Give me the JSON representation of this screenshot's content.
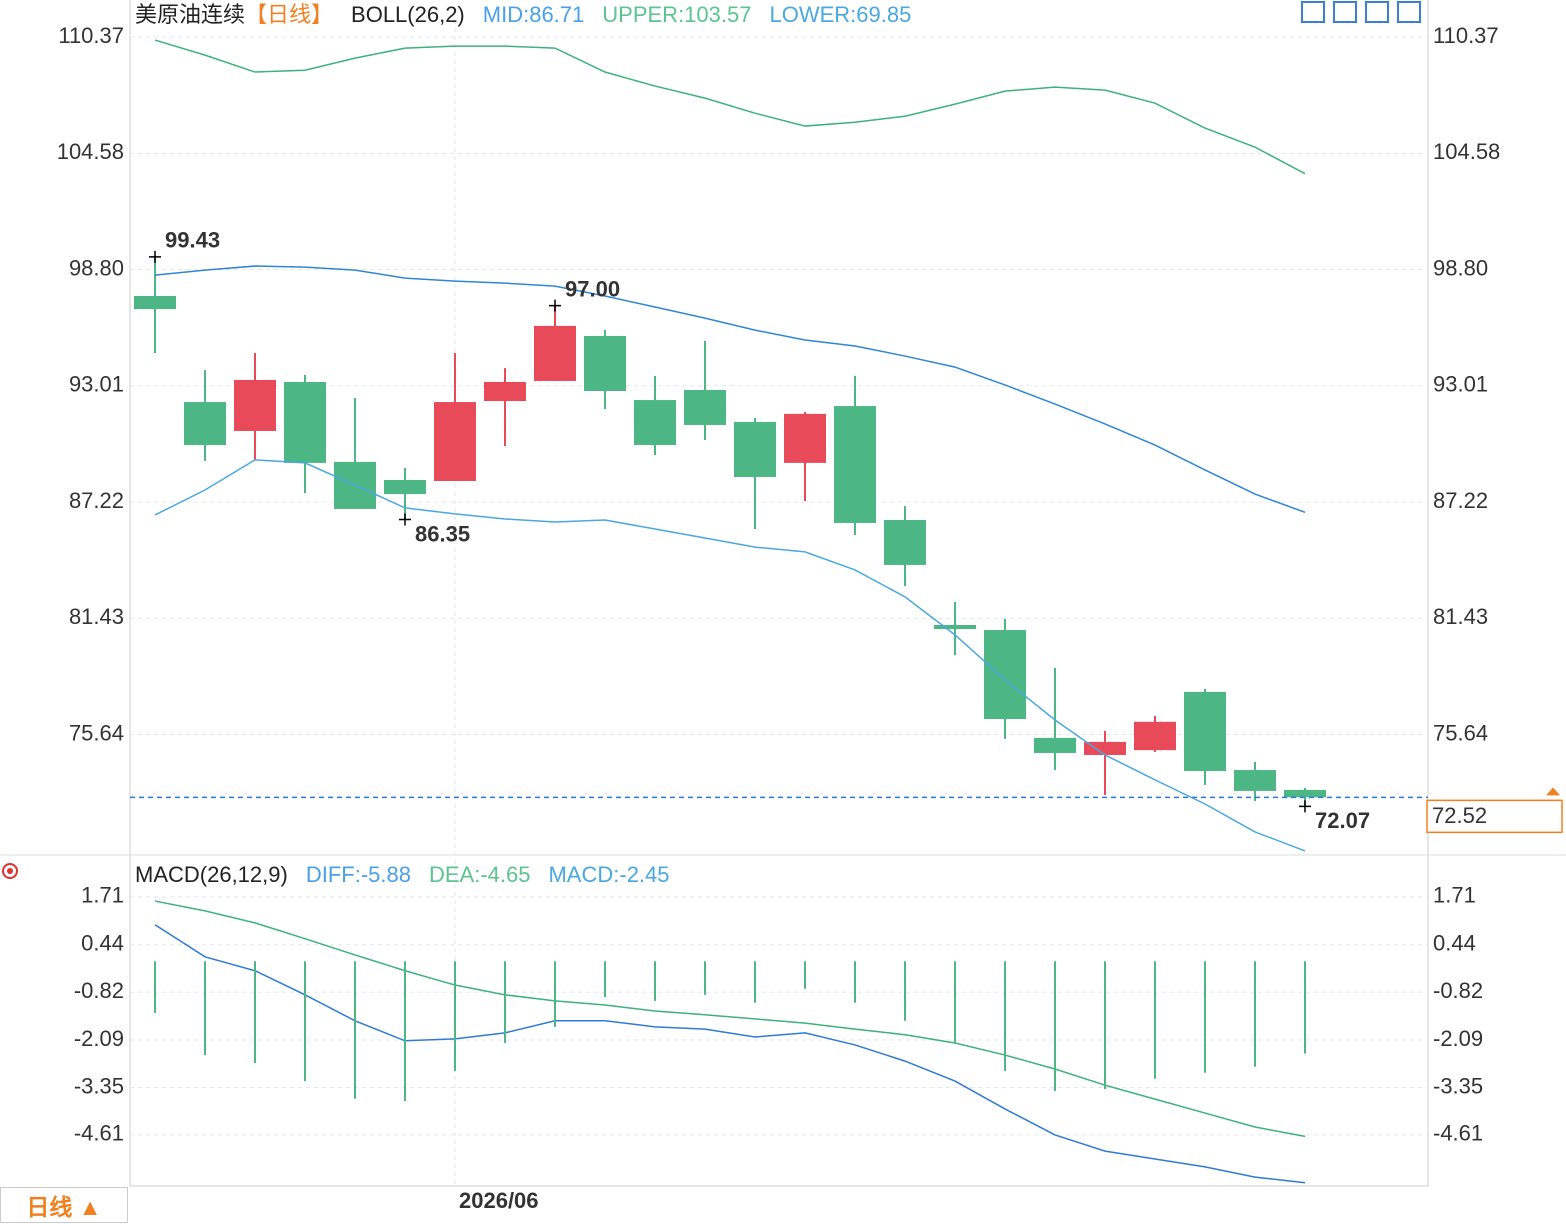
{
  "controls": {
    "period_button": "日线 ▲"
  },
  "chart_data": [
    {
      "type": "candlestick",
      "title": "美原油连续",
      "period": "【日线】",
      "indicator": "BOLL(26,2)",
      "categories": [
        null,
        null,
        null,
        null,
        null,
        null,
        "2026/06",
        null,
        null,
        null,
        null,
        null,
        null,
        null,
        null,
        null,
        null,
        null,
        null,
        null,
        null,
        null,
        null,
        null
      ],
      "open": [
        97.48,
        92.2,
        90.76,
        93.2,
        89.22,
        88.32,
        88.27,
        92.25,
        93.25,
        95.49,
        92.3,
        92.8,
        91.21,
        89.17,
        92.0,
        86.33,
        81.1,
        80.85,
        75.48,
        74.63,
        74.87,
        77.77,
        73.88,
        72.89
      ],
      "high": [
        99.43,
        93.79,
        94.64,
        93.55,
        92.4,
        88.92,
        94.64,
        93.89,
        97.0,
        95.79,
        93.5,
        95.24,
        91.41,
        91.71,
        93.5,
        87.02,
        82.25,
        81.4,
        78.96,
        75.83,
        76.57,
        77.92,
        74.28,
        72.99
      ],
      "low": [
        94.64,
        89.27,
        89.32,
        87.67,
        86.88,
        86.35,
        88.27,
        90.01,
        93.25,
        91.85,
        89.56,
        90.31,
        85.88,
        87.27,
        85.58,
        83.04,
        79.61,
        75.43,
        73.88,
        72.64,
        74.78,
        73.14,
        72.34,
        72.07
      ],
      "close": [
        96.83,
        90.06,
        93.3,
        89.17,
        86.88,
        87.62,
        92.2,
        93.2,
        95.99,
        92.75,
        90.06,
        91.06,
        88.47,
        91.61,
        86.18,
        84.09,
        80.9,
        76.42,
        74.73,
        75.28,
        76.28,
        73.83,
        72.84,
        72.52
      ],
      "up_color": "#e84a5a",
      "down_color": "#4cb784",
      "series": [
        {
          "name": "MID:86.71",
          "color": "#2f86d6",
          "text_color": "#4aa0e8",
          "values": [
            98.52,
            98.77,
            98.97,
            98.92,
            98.77,
            98.37,
            98.22,
            98.12,
            97.97,
            97.48,
            96.93,
            96.38,
            95.78,
            95.29,
            94.99,
            94.49,
            93.94,
            93.05,
            92.1,
            91.11,
            90.06,
            88.82,
            87.62,
            86.71
          ]
        },
        {
          "name": "UPPER:103.57",
          "color": "#3cb37a",
          "text_color": "#5cc48f",
          "values": [
            110.22,
            109.47,
            108.63,
            108.72,
            109.32,
            109.82,
            109.92,
            109.92,
            109.82,
            108.63,
            107.93,
            107.33,
            106.58,
            105.94,
            106.13,
            106.43,
            107.03,
            107.68,
            107.88,
            107.73,
            107.08,
            105.84,
            104.89,
            103.57
          ]
        },
        {
          "name": "LOWER:69.85",
          "color": "#4aa8e0",
          "text_color": "#4aa8e0",
          "values": [
            86.58,
            87.82,
            89.32,
            89.17,
            88.07,
            86.93,
            86.63,
            86.38,
            86.23,
            86.33,
            85.88,
            85.43,
            84.98,
            84.74,
            83.84,
            82.5,
            80.61,
            78.37,
            76.37,
            74.63,
            73.39,
            72.19,
            70.8,
            69.85
          ]
        }
      ],
      "annotations": [
        {
          "index": 0,
          "value": 99.43,
          "label": "99.43",
          "kind": "high"
        },
        {
          "index": 8,
          "value": 97,
          "label": "97.00",
          "kind": "high"
        },
        {
          "index": 5,
          "value": 86.35,
          "label": "86.35",
          "kind": "low"
        },
        {
          "index": 23,
          "value": 72.07,
          "label": "72.07",
          "kind": "low"
        }
      ],
      "last_price": 72.52,
      "ylim": [
        69.65,
        111.22
      ],
      "yticks": [
        110.37,
        104.58,
        {
          "value": 98.8,
          "label": "98.80"
        },
        93.01,
        87.22,
        81.43,
        75.64
      ],
      "grid": true
    },
    {
      "type": "macd",
      "title": "MACD(26,12,9)",
      "series": [
        {
          "name": "DIFF:-5.88",
          "kind": "line",
          "color": "#2f7ad6",
          "text_color": "#4aa0e8",
          "values": [
            0.97,
            0.12,
            -0.25,
            -0.89,
            -1.58,
            -2.11,
            -2.06,
            -1.9,
            -1.58,
            -1.58,
            -1.74,
            -1.8,
            -2.01,
            -1.9,
            -2.22,
            -2.65,
            -3.18,
            -3.92,
            -4.61,
            -5.04,
            -5.25,
            -5.46,
            -5.73,
            -5.88
          ]
        },
        {
          "name": "DEA:-4.65",
          "kind": "line",
          "color": "#3cb37a",
          "text_color": "#5cc48f",
          "values": [
            1.6,
            1.34,
            1.02,
            0.6,
            0.17,
            -0.25,
            -0.63,
            -0.89,
            -1.05,
            -1.16,
            -1.32,
            -1.42,
            -1.53,
            -1.64,
            -1.8,
            -1.95,
            -2.17,
            -2.49,
            -2.86,
            -3.29,
            -3.66,
            -4.03,
            -4.4,
            -4.65
          ]
        },
        {
          "name": "MACD:-2.45",
          "kind": "bar",
          "color": "#4cb784",
          "text_color": "#4aa8e0",
          "values": [
            -1.37,
            -2.49,
            -2.7,
            -3.18,
            -3.65,
            -3.71,
            -2.91,
            -2.17,
            -1.74,
            -0.95,
            -1.05,
            -0.89,
            -1.1,
            -0.73,
            -1.1,
            -1.58,
            -2.17,
            -2.91,
            -3.44,
            -3.39,
            -3.12,
            -2.96,
            -2.8,
            -2.45
          ]
        }
      ],
      "ylim": [
        -5.94,
        2.77
      ],
      "yticks": [
        1.71,
        0.44,
        -0.82,
        -2.09,
        -3.35,
        -4.61
      ],
      "grid": true
    }
  ]
}
